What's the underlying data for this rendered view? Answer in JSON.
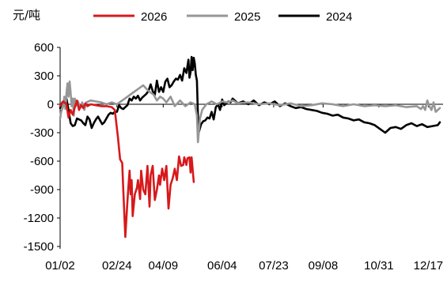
{
  "chart_data": {
    "type": "line",
    "unit_label": "元/吨",
    "ylim": [
      -1500,
      600
    ],
    "yticks": [
      600,
      300,
      0,
      -300,
      -600,
      -900,
      -1200,
      -1500
    ],
    "xlim": [
      1,
      365
    ],
    "xticks": [
      {
        "day": 1,
        "label": "01/02"
      },
      {
        "day": 55,
        "label": "02/24"
      },
      {
        "day": 99,
        "label": "04/09"
      },
      {
        "day": 155,
        "label": "06/04"
      },
      {
        "day": 204,
        "label": "07/23"
      },
      {
        "day": 251,
        "label": "09/08"
      },
      {
        "day": 304,
        "label": "10/31"
      },
      {
        "day": 351,
        "label": "12/17"
      }
    ],
    "grid": false,
    "legend": "top",
    "series": [
      {
        "name": "2026",
        "color": "#d7191c",
        "points": [
          [
            1,
            -20
          ],
          [
            4,
            30
          ],
          [
            7,
            0
          ],
          [
            9,
            -140
          ],
          [
            11,
            -60
          ],
          [
            13,
            -110
          ],
          [
            15,
            -30
          ],
          [
            17,
            40
          ],
          [
            19,
            -60
          ],
          [
            21,
            -10
          ],
          [
            23,
            -40
          ],
          [
            25,
            10
          ],
          [
            27,
            -20
          ],
          [
            30,
            0
          ],
          [
            35,
            -10
          ],
          [
            40,
            -20
          ],
          [
            45,
            -20
          ],
          [
            50,
            -30
          ],
          [
            53,
            -60
          ],
          [
            56,
            -350
          ],
          [
            58,
            -580
          ],
          [
            60,
            -620
          ],
          [
            61,
            -900
          ],
          [
            62,
            -1150
          ],
          [
            63,
            -1400
          ],
          [
            64,
            -1200
          ],
          [
            65,
            -1020
          ],
          [
            66,
            -860
          ],
          [
            67,
            -700
          ],
          [
            68,
            -950
          ],
          [
            69,
            -800
          ],
          [
            70,
            -1180
          ],
          [
            72,
            -950
          ],
          [
            74,
            -880
          ],
          [
            75,
            -800
          ],
          [
            77,
            -1000
          ],
          [
            78,
            -700
          ],
          [
            80,
            -900
          ],
          [
            82,
            -950
          ],
          [
            84,
            -650
          ],
          [
            86,
            -1080
          ],
          [
            87,
            -750
          ],
          [
            89,
            -650
          ],
          [
            91,
            -1010
          ],
          [
            93,
            -900
          ],
          [
            95,
            -750
          ],
          [
            96,
            -850
          ],
          [
            98,
            -680
          ],
          [
            100,
            -800
          ],
          [
            102,
            -650
          ],
          [
            104,
            -1100
          ],
          [
            106,
            -850
          ],
          [
            108,
            -780
          ],
          [
            110,
            -680
          ],
          [
            112,
            -800
          ],
          [
            114,
            -550
          ],
          [
            116,
            -650
          ],
          [
            118,
            -640
          ],
          [
            119,
            -560
          ],
          [
            121,
            -640
          ],
          [
            122,
            -570
          ],
          [
            124,
            -560
          ],
          [
            125,
            -720
          ],
          [
            126,
            -560
          ],
          [
            128,
            -820
          ]
        ]
      },
      {
        "name": "2025",
        "color": "#969696",
        "points": [
          [
            1,
            -150
          ],
          [
            2,
            -80
          ],
          [
            4,
            -20
          ],
          [
            5,
            80
          ],
          [
            6,
            -50
          ],
          [
            7,
            110
          ],
          [
            8,
            220
          ],
          [
            9,
            80
          ],
          [
            10,
            240
          ],
          [
            11,
            120
          ],
          [
            12,
            -20
          ],
          [
            13,
            60
          ],
          [
            14,
            -120
          ],
          [
            15,
            60
          ],
          [
            16,
            -20
          ],
          [
            18,
            30
          ],
          [
            20,
            -40
          ],
          [
            22,
            20
          ],
          [
            24,
            -60
          ],
          [
            26,
            20
          ],
          [
            30,
            40
          ],
          [
            35,
            30
          ],
          [
            40,
            20
          ],
          [
            45,
            0
          ],
          [
            50,
            20
          ],
          [
            55,
            0
          ],
          [
            60,
            40
          ],
          [
            65,
            80
          ],
          [
            70,
            120
          ],
          [
            75,
            160
          ],
          [
            80,
            200
          ],
          [
            85,
            140
          ],
          [
            90,
            100
          ],
          [
            93,
            40
          ],
          [
            96,
            80
          ],
          [
            99,
            60
          ],
          [
            102,
            20
          ],
          [
            106,
            80
          ],
          [
            110,
            -20
          ],
          [
            115,
            40
          ],
          [
            120,
            -20
          ],
          [
            125,
            20
          ],
          [
            129,
            0
          ],
          [
            131,
            -120
          ],
          [
            132,
            -400
          ],
          [
            134,
            -150
          ],
          [
            136,
            -60
          ],
          [
            140,
            0
          ],
          [
            145,
            30
          ],
          [
            150,
            0
          ],
          [
            155,
            30
          ],
          [
            160,
            20
          ],
          [
            165,
            40
          ],
          [
            170,
            10
          ],
          [
            180,
            20
          ],
          [
            190,
            0
          ],
          [
            200,
            10
          ],
          [
            210,
            -10
          ],
          [
            220,
            10
          ],
          [
            230,
            -20
          ],
          [
            240,
            -10
          ],
          [
            250,
            10
          ],
          [
            260,
            0
          ],
          [
            270,
            -20
          ],
          [
            280,
            0
          ],
          [
            290,
            -20
          ],
          [
            300,
            -10
          ],
          [
            310,
            -20
          ],
          [
            320,
            -10
          ],
          [
            330,
            -30
          ],
          [
            340,
            -20
          ],
          [
            344,
            -50
          ],
          [
            346,
            -20
          ],
          [
            348,
            -60
          ],
          [
            350,
            40
          ],
          [
            352,
            -20
          ],
          [
            354,
            -60
          ],
          [
            356,
            20
          ],
          [
            358,
            -80
          ],
          [
            362,
            -40
          ]
        ]
      },
      {
        "name": "2024",
        "color": "#000000",
        "points": [
          [
            1,
            -40
          ],
          [
            3,
            20
          ],
          [
            5,
            10
          ],
          [
            7,
            60
          ],
          [
            9,
            -60
          ],
          [
            11,
            -200
          ],
          [
            13,
            -230
          ],
          [
            15,
            -220
          ],
          [
            17,
            -150
          ],
          [
            19,
            -160
          ],
          [
            21,
            -170
          ],
          [
            23,
            -200
          ],
          [
            25,
            -220
          ],
          [
            27,
            -130
          ],
          [
            29,
            -160
          ],
          [
            31,
            -250
          ],
          [
            33,
            -200
          ],
          [
            35,
            -160
          ],
          [
            37,
            -130
          ],
          [
            39,
            -170
          ],
          [
            41,
            -210
          ],
          [
            43,
            -190
          ],
          [
            45,
            -150
          ],
          [
            47,
            -110
          ],
          [
            49,
            -90
          ],
          [
            51,
            -100
          ],
          [
            53,
            -80
          ],
          [
            55,
            -80
          ],
          [
            57,
            -10
          ],
          [
            59,
            -40
          ],
          [
            61,
            -50
          ],
          [
            63,
            -30
          ],
          [
            65,
            -10
          ],
          [
            67,
            60
          ],
          [
            69,
            40
          ],
          [
            71,
            80
          ],
          [
            73,
            60
          ],
          [
            75,
            90
          ],
          [
            77,
            40
          ],
          [
            79,
            70
          ],
          [
            81,
            90
          ],
          [
            83,
            110
          ],
          [
            85,
            140
          ],
          [
            87,
            210
          ],
          [
            89,
            140
          ],
          [
            91,
            100
          ],
          [
            93,
            250
          ],
          [
            95,
            130
          ],
          [
            97,
            180
          ],
          [
            99,
            130
          ],
          [
            101,
            240
          ],
          [
            103,
            270
          ],
          [
            105,
            180
          ],
          [
            107,
            200
          ],
          [
            109,
            240
          ],
          [
            111,
            270
          ],
          [
            113,
            260
          ],
          [
            115,
            310
          ],
          [
            117,
            250
          ],
          [
            119,
            380
          ],
          [
            121,
            330
          ],
          [
            123,
            470
          ],
          [
            124,
            280
          ],
          [
            125,
            340
          ],
          [
            126,
            500
          ],
          [
            127,
            360
          ],
          [
            128,
            490
          ],
          [
            129,
            430
          ],
          [
            130,
            310
          ],
          [
            131,
            250
          ],
          [
            132,
            -120
          ],
          [
            133,
            -290
          ],
          [
            135,
            -210
          ],
          [
            137,
            -180
          ],
          [
            139,
            -170
          ],
          [
            141,
            -140
          ],
          [
            143,
            -150
          ],
          [
            145,
            -80
          ],
          [
            147,
            -160
          ],
          [
            149,
            -30
          ],
          [
            151,
            0
          ],
          [
            153,
            -60
          ],
          [
            155,
            50
          ],
          [
            157,
            -10
          ],
          [
            159,
            10
          ],
          [
            161,
            30
          ],
          [
            163,
            20
          ],
          [
            165,
            60
          ],
          [
            170,
            10
          ],
          [
            175,
            30
          ],
          [
            180,
            0
          ],
          [
            185,
            40
          ],
          [
            190,
            -10
          ],
          [
            195,
            20
          ],
          [
            200,
            0
          ],
          [
            205,
            30
          ],
          [
            210,
            -20
          ],
          [
            215,
            10
          ],
          [
            220,
            -20
          ],
          [
            225,
            -40
          ],
          [
            230,
            -30
          ],
          [
            235,
            -50
          ],
          [
            240,
            -60
          ],
          [
            245,
            -70
          ],
          [
            250,
            -90
          ],
          [
            255,
            -100
          ],
          [
            260,
            -120
          ],
          [
            265,
            -110
          ],
          [
            270,
            -140
          ],
          [
            275,
            -150
          ],
          [
            280,
            -170
          ],
          [
            285,
            -160
          ],
          [
            290,
            -190
          ],
          [
            295,
            -200
          ],
          [
            300,
            -220
          ],
          [
            305,
            -260
          ],
          [
            310,
            -300
          ],
          [
            315,
            -250
          ],
          [
            320,
            -240
          ],
          [
            325,
            -260
          ],
          [
            330,
            -220
          ],
          [
            335,
            -200
          ],
          [
            340,
            -230
          ],
          [
            345,
            -210
          ],
          [
            350,
            -240
          ],
          [
            355,
            -230
          ],
          [
            360,
            -220
          ],
          [
            362,
            -190
          ]
        ]
      }
    ]
  }
}
